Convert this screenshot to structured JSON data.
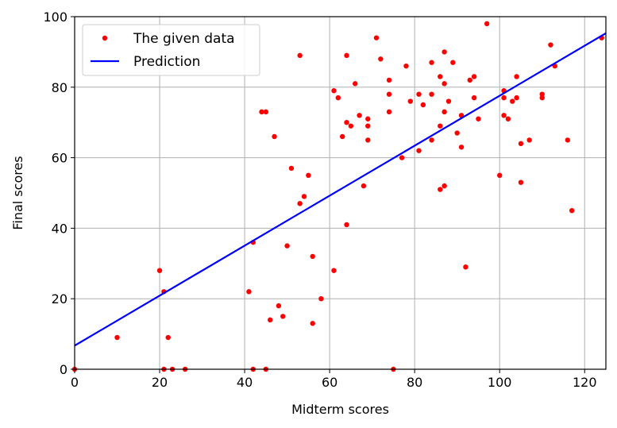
{
  "chart_data": {
    "type": "scatter",
    "xlabel": "Midterm scores",
    "ylabel": "Final scores",
    "xlim": [
      0,
      125
    ],
    "ylim": [
      0,
      100
    ],
    "x_ticks": [
      0,
      20,
      40,
      60,
      80,
      100,
      120
    ],
    "y_ticks": [
      0,
      20,
      40,
      60,
      80,
      100
    ],
    "grid": true,
    "legend_position": "top-left",
    "colors": {
      "points": "#ff0000",
      "line": "#0000ff"
    },
    "series": [
      {
        "name": "The given data",
        "kind": "scatter",
        "points": [
          [
            0,
            0
          ],
          [
            10,
            9
          ],
          [
            20,
            28
          ],
          [
            21,
            22
          ],
          [
            21,
            0
          ],
          [
            22,
            9
          ],
          [
            23,
            0
          ],
          [
            26,
            0
          ],
          [
            41,
            22
          ],
          [
            42,
            36
          ],
          [
            42,
            0
          ],
          [
            44,
            73
          ],
          [
            45,
            73
          ],
          [
            45,
            0
          ],
          [
            46,
            14
          ],
          [
            47,
            66
          ],
          [
            48,
            18
          ],
          [
            49,
            15
          ],
          [
            50,
            35
          ],
          [
            51,
            57
          ],
          [
            53,
            47
          ],
          [
            53,
            89
          ],
          [
            54,
            49
          ],
          [
            55,
            55
          ],
          [
            56,
            32
          ],
          [
            56,
            13
          ],
          [
            58,
            20
          ],
          [
            61,
            28
          ],
          [
            61,
            79
          ],
          [
            62,
            77
          ],
          [
            63,
            66
          ],
          [
            64,
            41
          ],
          [
            64,
            70
          ],
          [
            64,
            89
          ],
          [
            65,
            69
          ],
          [
            66,
            81
          ],
          [
            67,
            72
          ],
          [
            68,
            52
          ],
          [
            69,
            65
          ],
          [
            69,
            71
          ],
          [
            69,
            69
          ],
          [
            71,
            94
          ],
          [
            72,
            88
          ],
          [
            74,
            82
          ],
          [
            74,
            73
          ],
          [
            74,
            78
          ],
          [
            75,
            0
          ],
          [
            77,
            60
          ],
          [
            78,
            86
          ],
          [
            79,
            76
          ],
          [
            81,
            62
          ],
          [
            81,
            78
          ],
          [
            82,
            75
          ],
          [
            84,
            65
          ],
          [
            84,
            87
          ],
          [
            84,
            78
          ],
          [
            86,
            51
          ],
          [
            86,
            69
          ],
          [
            86,
            83
          ],
          [
            87,
            90
          ],
          [
            87,
            73
          ],
          [
            87,
            52
          ],
          [
            87,
            81
          ],
          [
            88,
            76
          ],
          [
            89,
            87
          ],
          [
            90,
            67
          ],
          [
            91,
            72
          ],
          [
            91,
            63
          ],
          [
            92,
            29
          ],
          [
            93,
            82
          ],
          [
            94,
            83
          ],
          [
            94,
            77
          ],
          [
            95,
            71
          ],
          [
            97,
            98
          ],
          [
            100,
            55
          ],
          [
            101,
            77
          ],
          [
            101,
            79
          ],
          [
            101,
            72
          ],
          [
            102,
            71
          ],
          [
            103,
            76
          ],
          [
            104,
            77
          ],
          [
            104,
            83
          ],
          [
            105,
            64
          ],
          [
            105,
            53
          ],
          [
            107,
            65
          ],
          [
            110,
            77
          ],
          [
            110,
            78
          ],
          [
            112,
            92
          ],
          [
            113,
            86
          ],
          [
            116,
            65
          ],
          [
            117,
            45
          ],
          [
            124,
            94
          ]
        ]
      },
      {
        "name": "Prediction",
        "kind": "line",
        "points": [
          [
            0,
            6.7
          ],
          [
            125,
            95.3
          ]
        ]
      }
    ]
  }
}
